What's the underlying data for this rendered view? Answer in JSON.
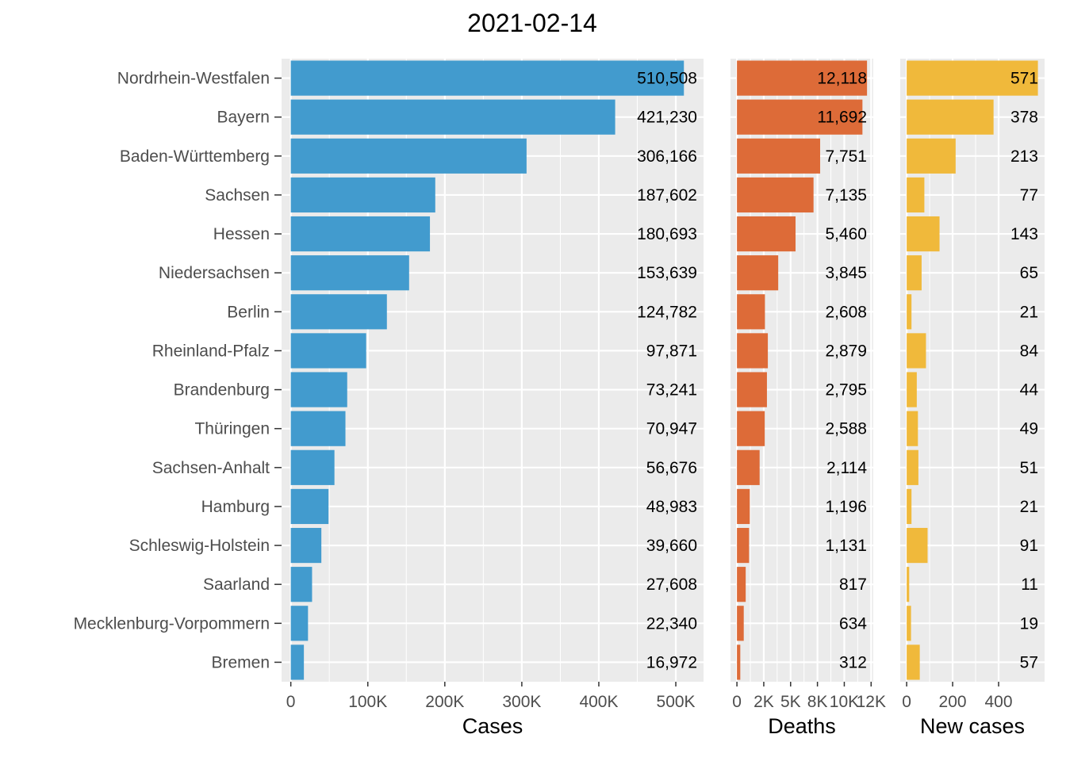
{
  "chart_data": {
    "type": "bar",
    "title": "2021-02-14",
    "categories": [
      "Nordrhein-Westfalen",
      "Bayern",
      "Baden-Württemberg",
      "Sachsen",
      "Hessen",
      "Niedersachsen",
      "Berlin",
      "Rheinland-Pfalz",
      "Brandenburg",
      "Thüringen",
      "Sachsen-Anhalt",
      "Hamburg",
      "Schleswig-Holstein",
      "Saarland",
      "Mecklenburg-Vorpommern",
      "Bremen"
    ],
    "orientation": "horizontal",
    "grid": true,
    "series": [
      {
        "name": "Cases",
        "xlabel": "Cases",
        "color": "#429BCE",
        "values": [
          510508,
          421230,
          306166,
          187602,
          180693,
          153639,
          124782,
          97871,
          73241,
          70947,
          56676,
          48983,
          39660,
          27608,
          22340,
          16972
        ],
        "value_labels": [
          "510,508",
          "421,230",
          "306,166",
          "187,602",
          "180,693",
          "153,639",
          "124,782",
          "97,871",
          "73,241",
          "70,947",
          "56,676",
          "48,983",
          "39,660",
          "27,608",
          "22,340",
          "16,972"
        ],
        "xlim": [
          -12000,
          536000
        ],
        "ticks": [
          0,
          100000,
          200000,
          300000,
          400000,
          500000
        ],
        "tick_labels": [
          "0",
          "100K",
          "200K",
          "300K",
          "400K",
          "500K"
        ]
      },
      {
        "name": "Deaths",
        "xlabel": "Deaths",
        "color": "#DD6B38",
        "values": [
          12118,
          11692,
          7751,
          7135,
          5460,
          3845,
          2608,
          2879,
          2795,
          2588,
          2114,
          1196,
          1131,
          817,
          634,
          312
        ],
        "value_labels": [
          "12,118",
          "11,692",
          "7,751",
          "7,135",
          "5,460",
          "3,845",
          "2,608",
          "2,879",
          "2,795",
          "2,588",
          "2,114",
          "1,196",
          "1,131",
          "817",
          "634",
          "312"
        ],
        "xlim": [
          -600,
          12700
        ],
        "ticks": [
          0,
          2500,
          5000,
          7500,
          10000,
          12500
        ],
        "tick_labels": [
          "0",
          "2K",
          "5K",
          "8K",
          "10K",
          "12K"
        ]
      },
      {
        "name": "New cases",
        "xlabel": "New cases",
        "color": "#F0B93B",
        "values": [
          571,
          378,
          213,
          77,
          143,
          65,
          21,
          84,
          44,
          49,
          51,
          21,
          91,
          11,
          19,
          57
        ],
        "value_labels": [
          "571",
          "378",
          "213",
          "77",
          "143",
          "65",
          "21",
          "84",
          "44",
          "49",
          "51",
          "21",
          "91",
          "11",
          "19",
          "57"
        ],
        "xlim": [
          -28,
          600
        ],
        "ticks": [
          0,
          200,
          400
        ],
        "tick_labels": [
          "0",
          "200",
          "400"
        ]
      }
    ]
  }
}
